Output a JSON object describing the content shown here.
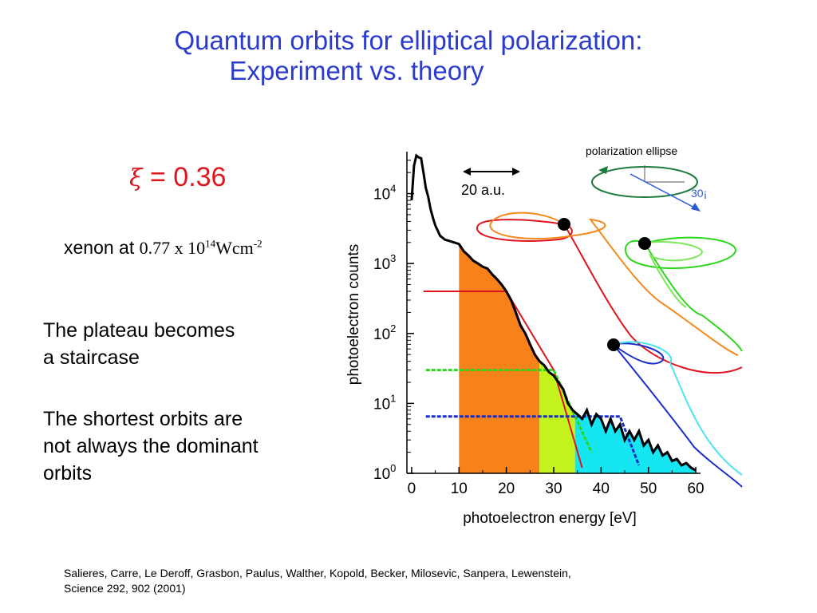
{
  "slide": {
    "title_line1": "Quantum orbits for elliptical polarization:",
    "title_line2": "Experiment vs. theory",
    "xi_symbol": "ξ",
    "xi_value": "= 0.36",
    "xenon_label": "xenon  at",
    "intensity_mantissa": "0.77 x 10",
    "intensity_exp": "14",
    "intensity_unit": "Wcm",
    "intensity_unit_exp": "-2",
    "bullet1_line1": "The plateau becomes",
    "bullet1_line2": "a staircase",
    "bullet2_line1": "The shortest orbits are",
    "bullet2_line2": "not always the dominant",
    "bullet2_line3": "orbits",
    "reference_line1": "Salieres, Carre, Le Deroff, Grasbon, Paulus, Walther, Kopold, Becker, Milosevic, Sanpera, Lewenstein,",
    "reference_line2": "Science 292, 902 (2001)",
    "title_color": "#2b3bcc",
    "xi_color": "#e0141e"
  },
  "chart_data": {
    "type": "area",
    "xlabel": "photoelectron energy [eV]",
    "ylabel": "photoelectron counts",
    "xlim": [
      -1,
      61
    ],
    "ylim_log10": [
      0,
      4.6
    ],
    "log_y": true,
    "x_ticks": [
      "0",
      "10",
      "20",
      "30",
      "40",
      "50",
      "60"
    ],
    "y_ticks": [
      {
        "base": "10",
        "exp": "0"
      },
      {
        "base": "10",
        "exp": "1"
      },
      {
        "base": "10",
        "exp": "2"
      },
      {
        "base": "10",
        "exp": "3"
      },
      {
        "base": "10",
        "exp": "4"
      }
    ],
    "scale_bar_label": "20 a.u.",
    "ellipse_title": "polarization ellipse",
    "ellipse_angle_label": "30¡",
    "spectrum": {
      "x": [
        0,
        0.5,
        1,
        1.5,
        2,
        2.5,
        3,
        3.5,
        4,
        4.5,
        5,
        6,
        7,
        8,
        9,
        10,
        11,
        12,
        13,
        14,
        15,
        16,
        17,
        18,
        19,
        20,
        21,
        22,
        23,
        24,
        25,
        26,
        27,
        28,
        29,
        30,
        31,
        32,
        33,
        34,
        35,
        36,
        37,
        38,
        39,
        40,
        41,
        42,
        43,
        44,
        45,
        46,
        47,
        48,
        49,
        50,
        51,
        52,
        53,
        54,
        55,
        56,
        57,
        58,
        59,
        60
      ],
      "y": [
        8000,
        25000,
        35000,
        33000,
        32000,
        20000,
        12000,
        9000,
        6000,
        4500,
        3500,
        2500,
        2200,
        2100,
        2000,
        1900,
        1500,
        1300,
        1100,
        1000,
        900,
        850,
        700,
        600,
        500,
        400,
        300,
        200,
        130,
        100,
        70,
        50,
        40,
        35,
        28,
        25,
        20,
        16,
        10,
        8,
        7,
        6,
        8,
        5,
        7,
        6,
        4,
        6,
        4,
        5,
        3,
        4,
        3,
        4,
        2.5,
        3,
        2,
        2.5,
        1.8,
        2,
        1.5,
        1.6,
        1.3,
        1.4,
        1.2,
        1.1
      ]
    },
    "fill_regions": [
      {
        "name": "orange",
        "x_from": 10,
        "x_to": 27,
        "color": "#f7821a"
      },
      {
        "name": "yellow-green",
        "x_from": 27,
        "x_to": 34.5,
        "color": "#c4f21d"
      },
      {
        "name": "cyan",
        "x_from": 34.5,
        "x_to": 60,
        "color": "#16e6f2"
      }
    ],
    "series": [
      {
        "x": [
          2.5,
          20,
          30,
          36
        ],
        "y": [
          400,
          400,
          30,
          1.2
        ],
        "color": "#e0141e"
      },
      {
        "x": [
          3,
          30,
          38
        ],
        "y": [
          30,
          30,
          2
        ],
        "color": "#2bd61c"
      },
      {
        "x": [
          3,
          44,
          48
        ],
        "y": [
          6.5,
          6.5,
          1.3
        ],
        "color": "#1a2fc9"
      }
    ]
  }
}
